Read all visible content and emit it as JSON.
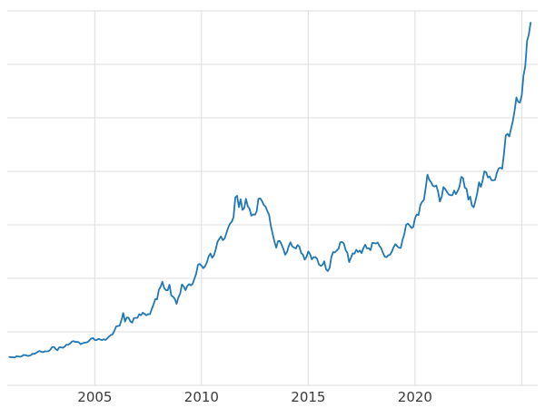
{
  "chart_data": {
    "type": "line",
    "title": "",
    "xlabel": "",
    "ylabel": "",
    "xlim": [
      2000.9,
      2025.75
    ],
    "ylim": [
      0,
      3500
    ],
    "y_grid_step": 500,
    "x_gridlines": [
      2005,
      2010,
      2015,
      2020,
      2025
    ],
    "x_ticks": [
      {
        "year": 2005,
        "label": "2005"
      },
      {
        "year": 2010,
        "label": "2010"
      },
      {
        "year": 2015,
        "label": "2015"
      },
      {
        "year": 2020,
        "label": "2020"
      }
    ],
    "grid_on": true,
    "legend": "none",
    "line_color": "#1f77b4",
    "grid_color": "#dedede",
    "tick_label_color": "#3a3a3a",
    "x_start": 2001.0,
    "x_step_months": 1,
    "values": [
      266,
      262,
      263,
      260,
      272,
      270,
      267,
      272,
      284,
      283,
      276,
      276,
      281,
      295,
      294,
      302,
      314,
      321,
      313,
      310,
      319,
      317,
      319,
      333,
      357,
      359,
      340,
      328,
      355,
      356,
      351,
      360,
      379,
      379,
      389,
      407,
      414,
      405,
      407,
      403,
      384,
      392,
      398,
      400,
      405,
      420,
      439,
      442,
      424,
      423,
      434,
      429,
      422,
      431,
      424,
      438,
      456,
      470,
      477,
      510,
      550,
      555,
      557,
      611,
      676,
      596,
      634,
      632,
      598,
      586,
      628,
      630,
      631,
      665,
      655,
      679,
      667,
      655,
      665,
      665,
      713,
      755,
      806,
      803,
      890,
      922,
      968,
      910,
      889,
      889,
      940,
      839,
      829,
      807,
      761,
      822,
      858,
      943,
      924,
      890,
      929,
      946,
      934,
      949,
      996,
      1043,
      1127,
      1135,
      1118,
      1095,
      1113,
      1149,
      1205,
      1232,
      1193,
      1216,
      1271,
      1342,
      1370,
      1391,
      1356,
      1373,
      1424,
      1474,
      1511,
      1529,
      1573,
      1756,
      1772,
      1666,
      1739,
      1640,
      1656,
      1743,
      1674,
      1650,
      1586,
      1597,
      1594,
      1626,
      1745,
      1747,
      1722,
      1685,
      1671,
      1628,
      1593,
      1487,
      1414,
      1343,
      1286,
      1347,
      1349,
      1316,
      1276,
      1221,
      1244,
      1300,
      1336,
      1299,
      1288,
      1279,
      1311,
      1296,
      1238,
      1222,
      1175,
      1200,
      1251,
      1227,
      1178,
      1198,
      1199,
      1181,
      1130,
      1117,
      1125,
      1159,
      1086,
      1068,
      1097,
      1200,
      1246,
      1242,
      1260,
      1276,
      1337,
      1340,
      1327,
      1266,
      1238,
      1152,
      1192,
      1234,
      1231,
      1266,
      1246,
      1260,
      1236,
      1283,
      1314,
      1280,
      1282,
      1264,
      1331,
      1330,
      1325,
      1335,
      1303,
      1282,
      1238,
      1202,
      1198,
      1215,
      1221,
      1250,
      1292,
      1320,
      1301,
      1286,
      1284,
      1359,
      1413,
      1500,
      1511,
      1495,
      1471,
      1479,
      1561,
      1597,
      1592,
      1683,
      1716,
      1732,
      1843,
      1969,
      1922,
      1900,
      1866,
      1858,
      1867,
      1808,
      1718,
      1762,
      1853,
      1835,
      1807,
      1784,
      1777,
      1777,
      1820,
      1787,
      1816,
      1856,
      1948,
      1937,
      1848,
      1837,
      1736,
      1765,
      1681,
      1664,
      1725,
      1797,
      1898,
      1855,
      1913,
      2000,
      1992,
      1943,
      1951,
      1918,
      1916,
      1920,
      1984,
      2026,
      2034,
      2025,
      2160,
      2335,
      2351,
      2326,
      2398,
      2470,
      2568,
      2690,
      2651,
      2643,
      2708,
      2897,
      2984,
      3218,
      3280,
      3390
    ]
  }
}
